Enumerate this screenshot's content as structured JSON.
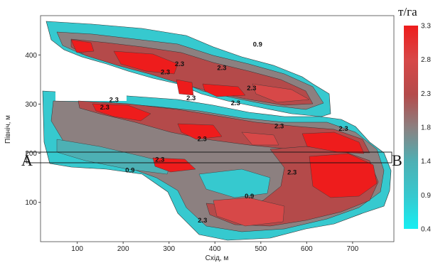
{
  "axes": {
    "xlabel": "Схід, м",
    "ylabel": "Північ, м",
    "x_ticks": [
      "100",
      "200",
      "300",
      "400",
      "500",
      "600",
      "700"
    ],
    "y_ticks": [
      "100",
      "200",
      "300",
      "400"
    ],
    "x_range": [
      20,
      790
    ],
    "y_range": [
      20,
      480
    ]
  },
  "legend": {
    "title": "т/га",
    "ticks": [
      "3.3",
      "2.8",
      "2.3",
      "1.8",
      "1.4",
      "0.9",
      "0.4"
    ],
    "colors": [
      "#ee1c1c",
      "#d74848",
      "#b44a4a",
      "#8c8080",
      "#4db0b4",
      "#36c9cf",
      "#17eef2"
    ]
  },
  "contour_labels": [
    {
      "text": "0.9",
      "x": 493,
      "y": 417
    },
    {
      "text": "2.3",
      "x": 323,
      "y": 377
    },
    {
      "text": "2.3",
      "x": 415,
      "y": 369
    },
    {
      "text": "2.3",
      "x": 292,
      "y": 361
    },
    {
      "text": "2.3",
      "x": 480,
      "y": 328
    },
    {
      "text": "2.3",
      "x": 348,
      "y": 308
    },
    {
      "text": "2.3",
      "x": 445,
      "y": 298
    },
    {
      "text": "2.3",
      "x": 180,
      "y": 304
    },
    {
      "text": "2.3",
      "x": 160,
      "y": 289
    },
    {
      "text": "2.3",
      "x": 540,
      "y": 251
    },
    {
      "text": "2.3",
      "x": 680,
      "y": 246
    },
    {
      "text": "2.3",
      "x": 372,
      "y": 225
    },
    {
      "text": "2.3",
      "x": 280,
      "y": 183
    },
    {
      "text": "0.9",
      "x": 215,
      "y": 161
    },
    {
      "text": "2.3",
      "x": 568,
      "y": 157
    },
    {
      "text": "0.9",
      "x": 475,
      "y": 108
    },
    {
      "text": "2.3",
      "x": 373,
      "y": 59
    }
  ],
  "section": {
    "start_label": "A",
    "end_label": "B"
  }
}
